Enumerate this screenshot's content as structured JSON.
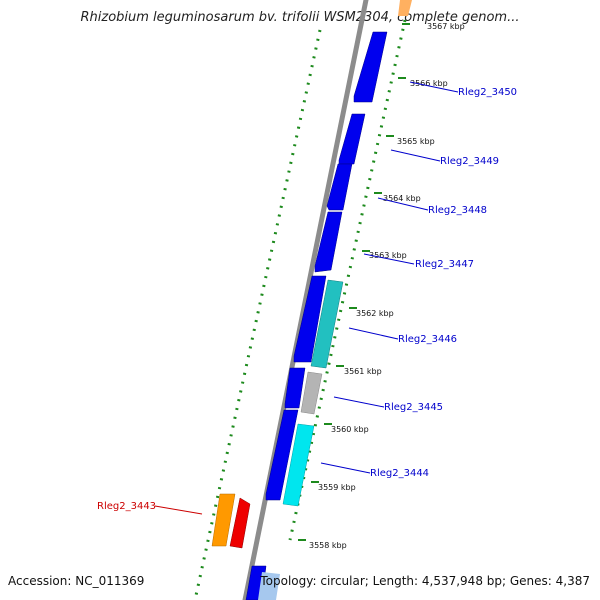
{
  "title": "Rhizobium leguminosarum bv. trifolii WSM2304, complete genom...",
  "footer": {
    "accession": "Accession: NC_011369",
    "topology": "Topology: circular; Length: 4,537,948 bp; Genes: 4,387"
  },
  "colors": {
    "background": "#ffffff",
    "backbone": "#8c8c8c",
    "gc_dots": "#1d8a1d",
    "gene_forward": "#0000ee",
    "gene_label_blue": "#0000cc",
    "gene_label_red": "#cc0000",
    "cyan": "#00e6ee",
    "teal": "#22c0c0",
    "gray": "#b4b4b4",
    "orange": "#ff9900",
    "red": "#ee0000"
  },
  "kbp_ticks": [
    "3567 kbp",
    "3566 kbp",
    "3565 kbp",
    "3564 kbp",
    "3563 kbp",
    "3562 kbp",
    "3561 kbp",
    "3560 kbp",
    "3559 kbp",
    "3558 kbp"
  ],
  "gene_labels": [
    {
      "text": "Rleg2_3450",
      "color": "blue"
    },
    {
      "text": "Rleg2_3449",
      "color": "blue"
    },
    {
      "text": "Rleg2_3448",
      "color": "blue"
    },
    {
      "text": "Rleg2_3447",
      "color": "blue"
    },
    {
      "text": "Rleg2_3446",
      "color": "blue"
    },
    {
      "text": "Rleg2_3445",
      "color": "blue"
    },
    {
      "text": "Rleg2_3444",
      "color": "blue"
    },
    {
      "text": "Rleg2_3443",
      "color": "red"
    }
  ]
}
